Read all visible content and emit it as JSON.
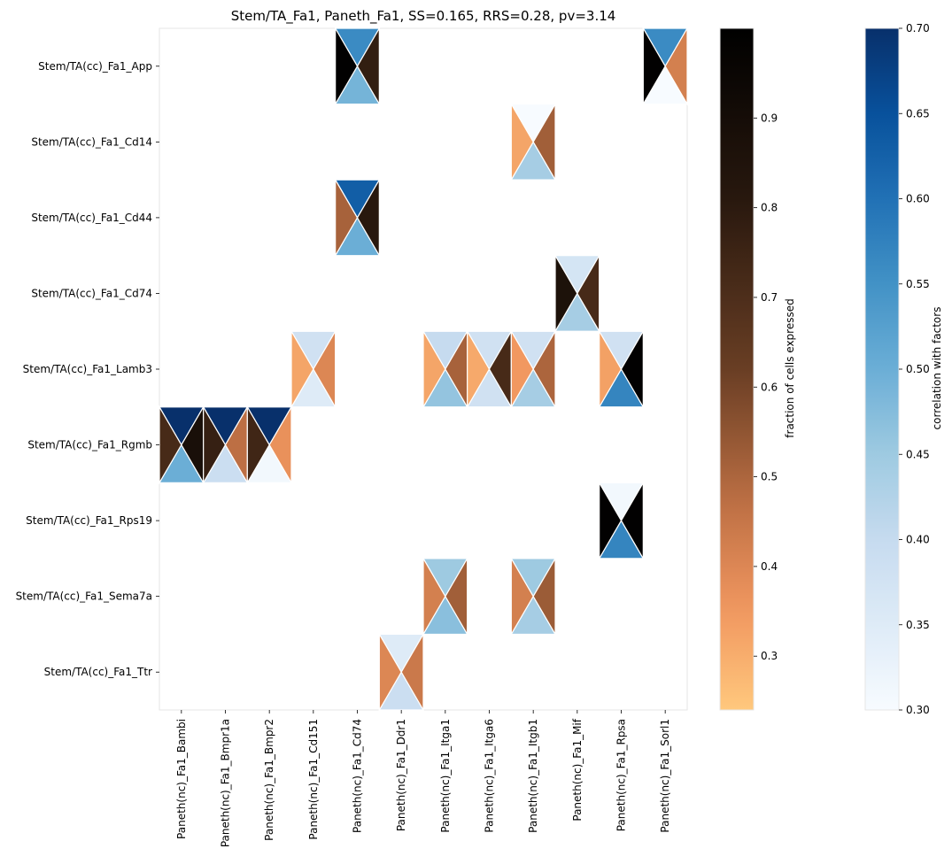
{
  "chart_data": {
    "type": "heatmap",
    "title": "Stem/TA_Fa1, Paneth_Fa1, SS=0.165, RRS=0.28, pv=3.14",
    "xlabel": "",
    "ylabel": "",
    "x_categories": [
      "Paneth(nc)_Fa1_Bambi",
      "Paneth(nc)_Fa1_Bmpr1a",
      "Paneth(nc)_Fa1_Bmpr2",
      "Paneth(nc)_Fa1_Cd151",
      "Paneth(nc)_Fa1_Cd74",
      "Paneth(nc)_Fa1_Ddr1",
      "Paneth(nc)_Fa1_Itga1",
      "Paneth(nc)_Fa1_Itga6",
      "Paneth(nc)_Fa1_Itgb1",
      "Paneth(nc)_Fa1_Mif",
      "Paneth(nc)_Fa1_Rpsa",
      "Paneth(nc)_Fa1_Sorl1"
    ],
    "y_categories": [
      "Stem/TA(cc)_Fa1_App",
      "Stem/TA(cc)_Fa1_Cd14",
      "Stem/TA(cc)_Fa1_Cd44",
      "Stem/TA(cc)_Fa1_Cd74",
      "Stem/TA(cc)_Fa1_Lamb3",
      "Stem/TA(cc)_Fa1_Rgmb",
      "Stem/TA(cc)_Fa1_Rps19",
      "Stem/TA(cc)_Fa1_Sema7a",
      "Stem/TA(cc)_Fa1_Ttr"
    ],
    "cell_fields": [
      "row_index",
      "col_index",
      "corr_top",
      "frac_left",
      "frac_right",
      "corr_bottom"
    ],
    "cells": [
      [
        0,
        4,
        0.56,
        0.99,
        0.78,
        0.49
      ],
      [
        0,
        11,
        0.56,
        0.99,
        0.42,
        0.3
      ],
      [
        1,
        8,
        0.3,
        0.32,
        0.52,
        0.44
      ],
      [
        2,
        4,
        0.63,
        0.51,
        0.81,
        0.5
      ],
      [
        3,
        9,
        0.37,
        0.86,
        0.72,
        0.44
      ],
      [
        4,
        3,
        0.38,
        0.32,
        0.4,
        0.35
      ],
      [
        4,
        6,
        0.4,
        0.32,
        0.51,
        0.46
      ],
      [
        4,
        7,
        0.38,
        0.31,
        0.72,
        0.38
      ],
      [
        4,
        8,
        0.38,
        0.35,
        0.5,
        0.44
      ],
      [
        4,
        10,
        0.38,
        0.33,
        0.99,
        0.57
      ],
      [
        5,
        0,
        0.7,
        0.72,
        0.88,
        0.5
      ],
      [
        5,
        1,
        0.7,
        0.77,
        0.47,
        0.39
      ],
      [
        5,
        2,
        0.7,
        0.74,
        0.37,
        0.31
      ],
      [
        6,
        10,
        0.31,
        0.99,
        0.99,
        0.57
      ],
      [
        7,
        6,
        0.45,
        0.42,
        0.52,
        0.47
      ],
      [
        7,
        8,
        0.45,
        0.42,
        0.53,
        0.44
      ],
      [
        8,
        5,
        0.35,
        0.4,
        0.44,
        0.39
      ]
    ],
    "colorbars": [
      {
        "label": "fraction of cells expressed",
        "colormap": "copper",
        "range": [
          0.24,
          1.0
        ],
        "ticks": [
          0.3,
          0.4,
          0.5,
          0.6,
          0.7,
          0.8,
          0.9
        ],
        "tick_labels": [
          "0.3",
          "0.4",
          "0.5",
          "0.6",
          "0.7",
          "0.8",
          "0.9"
        ]
      },
      {
        "label": "correlation with factors",
        "colormap": "Blues",
        "range": [
          0.3,
          0.7
        ],
        "ticks": [
          0.3,
          0.35,
          0.4,
          0.45,
          0.5,
          0.55,
          0.6,
          0.65,
          0.7
        ],
        "tick_labels": [
          "0.30",
          "0.35",
          "0.40",
          "0.45",
          "0.50",
          "0.55",
          "0.60",
          "0.65",
          "0.70"
        ]
      }
    ],
    "grid": false
  }
}
